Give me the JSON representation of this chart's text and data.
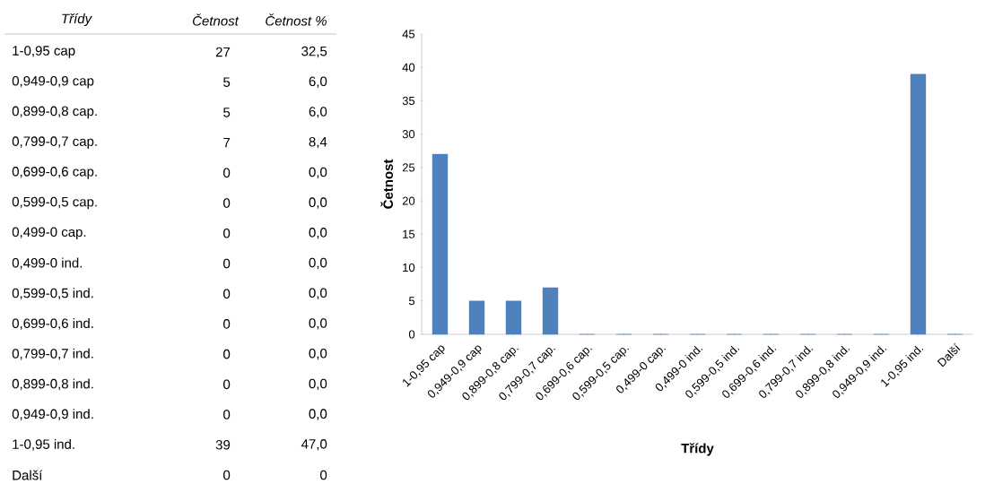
{
  "chart_data": [
    {
      "type": "other",
      "annotations": [
        "Třídy",
        "Četnost",
        "Četnost %",
        "1-0,95 cap",
        "27",
        "32,5",
        "0,949-0,9 cap",
        "5",
        "6,0",
        "0,899-0,8 cap.",
        "5",
        "6,0",
        "0,799-0,7 cap.",
        "7",
        "8,4",
        "0,699-0,6 cap.",
        "0",
        "0,0",
        "0,599-0,5 cap.",
        "0",
        "0,0",
        "0,499-0 cap.",
        "0",
        "0,0",
        "0,499-0 ind.",
        "0",
        "0,0",
        "0,599-0,5 ind.",
        "0",
        "0,0",
        "0,699-0,6 ind.",
        "0",
        "0,0",
        "0,799-0,7 ind.",
        "0",
        "0,0",
        "0,899-0,8 ind.",
        "0",
        "0,0",
        "0,949-0,9 ind.",
        "0",
        "0,0",
        "1-0,95 ind.",
        "39",
        "47,0",
        "Další",
        "0",
        "0"
      ]
    },
    {
      "type": "bar",
      "xlabel": "Třídy",
      "ylabel": "Četnost",
      "categories": [
        "1-0,95 cap",
        "0,949-0,9 cap",
        "0,899-0,8 cap.",
        "0,799-0,7 cap.",
        "0,699-0,6 cap.",
        "0,599-0,5 cap.",
        "0,499-0 cap.",
        "0,499-0 ind.",
        "0,599-0,5 ind.",
        "0,699-0,6 ind.",
        "0,799-0,7 ind.",
        "0,899-0,8 ind.",
        "0,949-0,9 ind.",
        "1-0,95 ind.",
        "Další"
      ],
      "values": [
        27,
        5,
        5,
        7,
        0,
        0,
        0,
        0,
        0,
        0,
        0,
        0,
        0,
        39,
        0
      ],
      "color": "#4f81bd",
      "ylim": [
        0,
        45
      ],
      "yticks": [
        0,
        5,
        10,
        15,
        20,
        25,
        30,
        35,
        40,
        45
      ]
    }
  ]
}
